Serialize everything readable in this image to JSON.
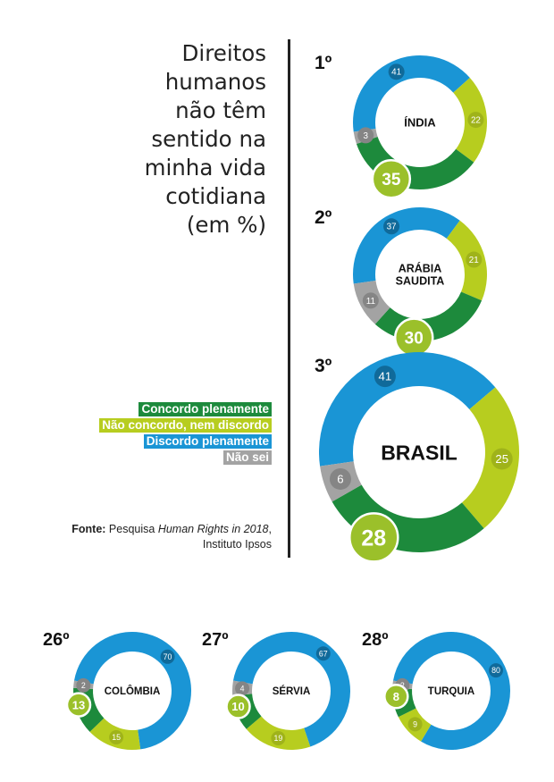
{
  "title_lines": [
    "Direitos",
    "humanos",
    "não têm",
    "sentido na",
    "minha vida",
    "cotidiana",
    "(em %)"
  ],
  "legend": [
    {
      "label": "Concordo plenamente",
      "color": "#1d8a3c"
    },
    {
      "label": "Não concordo, nem discordo",
      "color": "#b7cd1f"
    },
    {
      "label": "Discordo plenamente",
      "color": "#1a95d5"
    },
    {
      "label": "Não sei",
      "color": "#a3a3a3"
    }
  ],
  "source": {
    "label": "Fonte:",
    "text_before": " Pesquisa ",
    "italic": "Human Rights in 2018",
    "text_after": ", Instituto Ipsos"
  },
  "chart_data": {
    "type": "donut",
    "series_order": [
      "Concordo plenamente",
      "Não concordo, nem discordo",
      "Discordo plenamente",
      "Não sei"
    ],
    "countries": [
      {
        "rank": "1º",
        "name": "ÍNDIA",
        "values": [
          35,
          22,
          41,
          3
        ]
      },
      {
        "rank": "2º",
        "name": "ARÁBIA SAUDITA",
        "values": [
          30,
          21,
          37,
          11
        ]
      },
      {
        "rank": "3º",
        "name": "BRASIL",
        "values": [
          28,
          25,
          41,
          6
        ]
      },
      {
        "rank": "26º",
        "name": "COLÔMBIA",
        "values": [
          13,
          15,
          70,
          2
        ]
      },
      {
        "rank": "27º",
        "name": "SÉRVIA",
        "values": [
          10,
          19,
          67,
          4
        ]
      },
      {
        "rank": "28º",
        "name": "TURQUIA",
        "values": [
          8,
          9,
          80,
          2
        ]
      }
    ]
  }
}
